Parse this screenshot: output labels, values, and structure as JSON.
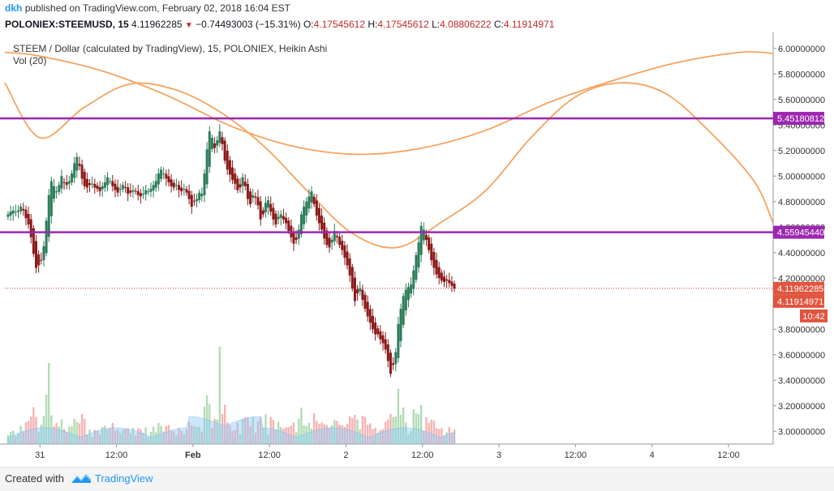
{
  "header": {
    "user": "dkh",
    "published": "published on TradingView.com, February 02, 2018 16:04 EST"
  },
  "quote": {
    "symbol": "POLONIEX:STEEMUSD, 15",
    "last": "4.11962285",
    "change": "−0.74493003 (−15.31%)",
    "open_label": "O:",
    "open": "4.17545612",
    "high_label": "H:",
    "high": "4.17545612",
    "low_label": "L:",
    "low": "4.08806222",
    "close_label": "C:",
    "close": "4.11914971"
  },
  "legend": {
    "title": "STEEM / Dollar (calculated by TradingView), 15, POLONIEX, Heikin Ashi",
    "volume": "Vol (20)"
  },
  "footer": {
    "created_with": "Created with",
    "brand": "TradingView"
  },
  "colors": {
    "up": "#26a69a",
    "candle_up": "#2e7d5b",
    "down": "#8b1a1a",
    "level_line": "#9c27b0",
    "curve": "#f4a460",
    "last_line": "#d32f2f",
    "price_tag_red": "#e0553f",
    "vol_up": "#a5d6a7",
    "vol_down": "#f4a6a6",
    "vol_ma": "#90caf9"
  },
  "chart_data": {
    "type": "candlestick",
    "y_axis": {
      "min": 2.9,
      "max": 6.1,
      "ticks": [
        "6.00000000",
        "5.80000000",
        "5.60000000",
        "5.40000000",
        "5.20000000",
        "5.00000000",
        "4.80000000",
        "4.60000000",
        "4.40000000",
        "4.20000000",
        "3.80000000",
        "3.60000000",
        "3.40000000",
        "3.20000000",
        "3.00000000"
      ],
      "tick_values": [
        6.0,
        5.8,
        5.6,
        5.4,
        5.2,
        5.0,
        4.8,
        4.6,
        4.4,
        4.2,
        3.8,
        3.6,
        3.4,
        3.2,
        3.0
      ]
    },
    "x_axis": {
      "labels": [
        "31",
        "12:00",
        "Feb",
        "12:00",
        "2",
        "12:00",
        "3",
        "12:00",
        "4",
        "12:00"
      ],
      "label_times_h": [
        0,
        12,
        24,
        36,
        48,
        60,
        72,
        84,
        96,
        108
      ],
      "range_h": [
        -5.5,
        115
      ]
    },
    "horizontal_levels": [
      {
        "value": 5.45180812,
        "label": "5.45180812"
      },
      {
        "value": 4.5594544,
        "label": "4.55945440"
      }
    ],
    "last_price": {
      "value": 4.11962285,
      "label": "4.11962285"
    },
    "close_tag": {
      "value": 4.11914971,
      "label": "4.11914971"
    },
    "countdown": "10:42",
    "curves": [
      {
        "name": "",
        "t": [
          -5.5,
          0,
          7,
          14,
          21,
          28,
          35,
          42,
          49,
          56,
          63,
          70,
          77,
          84,
          91,
          98,
          105,
          112,
          115
        ],
        "y": [
          5.73,
          5.3,
          5.54,
          5.72,
          5.68,
          5.51,
          5.24,
          4.88,
          4.55,
          4.44,
          4.64,
          4.89,
          5.3,
          5.62,
          5.73,
          5.65,
          5.35,
          4.96,
          4.63
        ]
      },
      {
        "name": "",
        "t": [
          -5.5,
          0,
          10,
          20,
          30,
          40,
          50,
          60,
          70,
          80,
          90,
          100,
          110,
          115
        ],
        "y": [
          5.97,
          5.94,
          5.82,
          5.63,
          5.39,
          5.23,
          5.17,
          5.22,
          5.36,
          5.58,
          5.75,
          5.89,
          5.97,
          5.96
        ]
      }
    ],
    "candles_t": [
      -5.0,
      -4.6,
      -4.2,
      -3.8,
      -3.4,
      -3.0,
      -2.6,
      -2.2,
      -1.8,
      -1.4,
      -1.0,
      -0.6,
      -0.2,
      0.2,
      0.6,
      1.0,
      1.4,
      1.8,
      2.2,
      2.6,
      3.0,
      3.4,
      3.8,
      4.2,
      4.6,
      5.0,
      5.4,
      5.8,
      6.2,
      6.6,
      7.0,
      7.4,
      7.8,
      8.2,
      8.6,
      9.0,
      9.4,
      9.8,
      10.2,
      10.6,
      11.0,
      11.4,
      11.8,
      12.2,
      12.6,
      13.0,
      13.4,
      13.8,
      14.2,
      14.6,
      15.0,
      15.4,
      15.8,
      16.2,
      16.6,
      17.0,
      17.4,
      17.8,
      18.2,
      18.6,
      19.0,
      19.4,
      19.8,
      20.2,
      20.6,
      21.0,
      21.4,
      21.8,
      22.2,
      22.6,
      23.0,
      23.4,
      23.8,
      24.2,
      24.6,
      25.0,
      25.4,
      25.8,
      26.2,
      26.6,
      27.0,
      27.4,
      27.8,
      28.2,
      28.6,
      29.0,
      29.4,
      29.8,
      30.2,
      30.6,
      31.0,
      31.4,
      31.8,
      32.2,
      32.6,
      33.0,
      33.4,
      33.8,
      34.2,
      34.6,
      35.0,
      35.4,
      35.8,
      36.2,
      36.6,
      37.0,
      37.4,
      37.8,
      38.2,
      38.6,
      39.0,
      39.4,
      39.8,
      40.2,
      40.6,
      41.0,
      41.4,
      41.8,
      42.2,
      42.6,
      43.0,
      43.4,
      43.8,
      44.2,
      44.6,
      45.0,
      45.4,
      45.8,
      46.2,
      46.6,
      47.0,
      47.4,
      47.8,
      48.2,
      48.6,
      49.0,
      49.4,
      49.8,
      50.2,
      50.6,
      51.0,
      51.4,
      51.8,
      52.2,
      52.6,
      53.0,
      53.4,
      53.8,
      54.2,
      54.6,
      55.0,
      55.4,
      55.8,
      56.2,
      56.6,
      57.0,
      57.4,
      57.8,
      58.2,
      58.6,
      59.0,
      59.4,
      59.8,
      60.2,
      60.6,
      61.0,
      61.4,
      61.8,
      62.2,
      62.6,
      63.0,
      63.4,
      63.8,
      64.2,
      64.6,
      65.0
    ],
    "candles_close": [
      4.7,
      4.72,
      4.73,
      4.72,
      4.73,
      4.76,
      4.73,
      4.67,
      4.62,
      4.52,
      4.39,
      4.28,
      4.3,
      4.34,
      4.45,
      4.65,
      4.85,
      4.96,
      4.92,
      4.88,
      4.93,
      5.0,
      4.95,
      4.93,
      4.96,
      5.02,
      5.1,
      5.15,
      5.08,
      4.98,
      4.92,
      4.91,
      4.93,
      4.94,
      4.91,
      4.9,
      4.88,
      4.92,
      4.95,
      4.99,
      4.96,
      4.92,
      4.89,
      4.87,
      4.9,
      4.93,
      4.91,
      4.86,
      4.87,
      4.89,
      4.88,
      4.85,
      4.84,
      4.86,
      4.89,
      4.88,
      4.9,
      4.93,
      4.96,
      5.02,
      5.05,
      5.02,
      4.98,
      4.95,
      4.92,
      4.91,
      4.93,
      4.89,
      4.88,
      4.9,
      4.87,
      4.82,
      4.76,
      4.8,
      4.82,
      4.87,
      4.86,
      5.02,
      5.21,
      5.35,
      5.3,
      5.22,
      5.28,
      5.35,
      5.25,
      5.12,
      5.05,
      5.01,
      4.97,
      4.94,
      4.89,
      4.91,
      4.99,
      4.92,
      4.82,
      4.78,
      4.85,
      4.83,
      4.77,
      4.66,
      4.7,
      4.79,
      4.81,
      4.72,
      4.66,
      4.62,
      4.68,
      4.7,
      4.66,
      4.63,
      4.57,
      4.52,
      4.47,
      4.5,
      4.58,
      4.7,
      4.76,
      4.8,
      4.84,
      4.88,
      4.78,
      4.69,
      4.63,
      4.58,
      4.51,
      4.46,
      4.44,
      4.5,
      4.57,
      4.52,
      4.46,
      4.42,
      4.36,
      4.3,
      4.22,
      4.12,
      4.02,
      4.08,
      4.12,
      4.03,
      3.96,
      3.9,
      3.85,
      3.8,
      3.76,
      3.76,
      3.72,
      3.69,
      3.64,
      3.55,
      3.45,
      3.52,
      3.62,
      3.84,
      3.96,
      4.06,
      4.11,
      4.13,
      4.15,
      4.26,
      4.38,
      4.48,
      4.61,
      4.58,
      4.5,
      4.42,
      4.34,
      4.28,
      4.23,
      4.2,
      4.18,
      4.17,
      4.18,
      4.16,
      4.14,
      4.12
    ],
    "volume_bars": "decorative (no axis values shown)"
  }
}
